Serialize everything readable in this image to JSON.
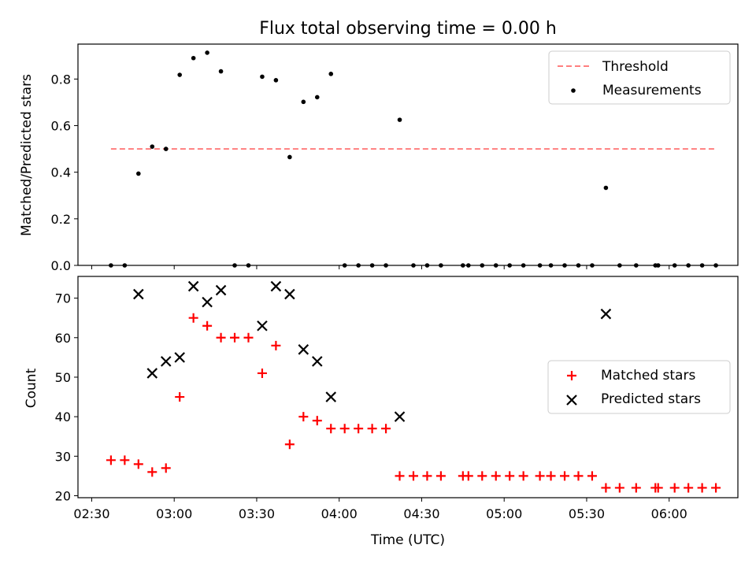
{
  "chart_data": [
    {
      "type": "scatter",
      "title": "Flux total observing time = 0.00 h",
      "xlabel": "",
      "ylabel": "Matched/Predicted stars",
      "xlim": [
        "02:25",
        "06:25"
      ],
      "ylim": [
        0,
        0.95
      ],
      "yticks": [
        0.0,
        0.2,
        0.4,
        0.6,
        0.8
      ],
      "yticklabels": [
        "0.0",
        "0.2",
        "0.4",
        "0.6",
        "0.8"
      ],
      "threshold": {
        "name": "Threshold",
        "value": 0.5,
        "x": [
          "02:37",
          "06:17"
        ],
        "color": "#ff7f7f",
        "style": "dashed"
      },
      "series": [
        {
          "name": "Measurements",
          "color": "#000000",
          "marker": "dot",
          "points": [
            [
              "02:37",
              0.0
            ],
            [
              "02:42",
              0.0
            ],
            [
              "02:47",
              0.394
            ],
            [
              "02:52",
              0.51
            ],
            [
              "02:57",
              0.5
            ],
            [
              "03:02",
              0.818
            ],
            [
              "03:07",
              0.89
            ],
            [
              "03:12",
              0.913
            ],
            [
              "03:17",
              0.833
            ],
            [
              "03:22",
              0.0
            ],
            [
              "03:27",
              0.0
            ],
            [
              "03:32",
              0.81
            ],
            [
              "03:37",
              0.795
            ],
            [
              "03:42",
              0.465
            ],
            [
              "03:47",
              0.702
            ],
            [
              "03:52",
              0.722
            ],
            [
              "03:57",
              0.822
            ],
            [
              "04:02",
              0.0
            ],
            [
              "04:07",
              0.0
            ],
            [
              "04:12",
              0.0
            ],
            [
              "04:17",
              0.0
            ],
            [
              "04:22",
              0.625
            ],
            [
              "04:27",
              0.0
            ],
            [
              "04:32",
              0.0
            ],
            [
              "04:37",
              0.0
            ],
            [
              "04:45",
              0.0
            ],
            [
              "04:47",
              0.0
            ],
            [
              "04:52",
              0.0
            ],
            [
              "04:57",
              0.0
            ],
            [
              "05:02",
              0.0
            ],
            [
              "05:07",
              0.0
            ],
            [
              "05:13",
              0.0
            ],
            [
              "05:17",
              0.0
            ],
            [
              "05:22",
              0.0
            ],
            [
              "05:27",
              0.0
            ],
            [
              "05:32",
              0.0
            ],
            [
              "05:37",
              0.333
            ],
            [
              "05:42",
              0.0
            ],
            [
              "05:48",
              0.0
            ],
            [
              "05:55",
              0.0
            ],
            [
              "05:56",
              0.0
            ],
            [
              "06:02",
              0.0
            ],
            [
              "06:07",
              0.0
            ],
            [
              "06:12",
              0.0
            ],
            [
              "06:17",
              0.0
            ]
          ]
        }
      ],
      "legend": {
        "position": "upper right",
        "entries": [
          "Threshold",
          "Measurements"
        ]
      }
    },
    {
      "type": "scatter",
      "title": "",
      "xlabel": "Time (UTC)",
      "ylabel": "Count",
      "xlim": [
        "02:25",
        "06:25"
      ],
      "ylim": [
        19.5,
        75.5
      ],
      "xticks": [
        "02:30",
        "03:00",
        "03:30",
        "04:00",
        "04:30",
        "05:00",
        "05:30",
        "06:00"
      ],
      "yticks": [
        20,
        30,
        40,
        50,
        60,
        70
      ],
      "yticklabels": [
        "20",
        "30",
        "40",
        "50",
        "60",
        "70"
      ],
      "series": [
        {
          "name": "Matched stars",
          "color": "#ff0000",
          "marker": "plus",
          "points": [
            [
              "02:37",
              29
            ],
            [
              "02:42",
              29
            ],
            [
              "02:47",
              28
            ],
            [
              "02:52",
              26
            ],
            [
              "02:57",
              27
            ],
            [
              "03:02",
              45
            ],
            [
              "03:07",
              65
            ],
            [
              "03:12",
              63
            ],
            [
              "03:17",
              60
            ],
            [
              "03:22",
              60
            ],
            [
              "03:27",
              60
            ],
            [
              "03:32",
              51
            ],
            [
              "03:37",
              58
            ],
            [
              "03:42",
              33
            ],
            [
              "03:47",
              40
            ],
            [
              "03:52",
              39
            ],
            [
              "03:57",
              37
            ],
            [
              "04:02",
              37
            ],
            [
              "04:07",
              37
            ],
            [
              "04:12",
              37
            ],
            [
              "04:17",
              37
            ],
            [
              "04:22",
              25
            ],
            [
              "04:27",
              25
            ],
            [
              "04:32",
              25
            ],
            [
              "04:37",
              25
            ],
            [
              "04:45",
              25
            ],
            [
              "04:47",
              25
            ],
            [
              "04:52",
              25
            ],
            [
              "04:57",
              25
            ],
            [
              "05:02",
              25
            ],
            [
              "05:07",
              25
            ],
            [
              "05:13",
              25
            ],
            [
              "05:17",
              25
            ],
            [
              "05:22",
              25
            ],
            [
              "05:27",
              25
            ],
            [
              "05:32",
              25
            ],
            [
              "05:37",
              22
            ],
            [
              "05:42",
              22
            ],
            [
              "05:48",
              22
            ],
            [
              "05:55",
              22
            ],
            [
              "05:56",
              22
            ],
            [
              "06:02",
              22
            ],
            [
              "06:07",
              22
            ],
            [
              "06:12",
              22
            ],
            [
              "06:17",
              22
            ]
          ]
        },
        {
          "name": "Predicted stars",
          "color": "#000000",
          "marker": "x",
          "points": [
            [
              "02:47",
              71
            ],
            [
              "02:52",
              51
            ],
            [
              "02:57",
              54
            ],
            [
              "03:02",
              55
            ],
            [
              "03:07",
              73
            ],
            [
              "03:12",
              69
            ],
            [
              "03:17",
              72
            ],
            [
              "03:32",
              63
            ],
            [
              "03:37",
              73
            ],
            [
              "03:42",
              71
            ],
            [
              "03:47",
              57
            ],
            [
              "03:52",
              54
            ],
            [
              "03:57",
              45
            ],
            [
              "04:22",
              40
            ],
            [
              "05:37",
              66
            ]
          ]
        }
      ],
      "legend": {
        "position": "center right",
        "entries": [
          "Matched stars",
          "Predicted stars"
        ]
      }
    }
  ]
}
